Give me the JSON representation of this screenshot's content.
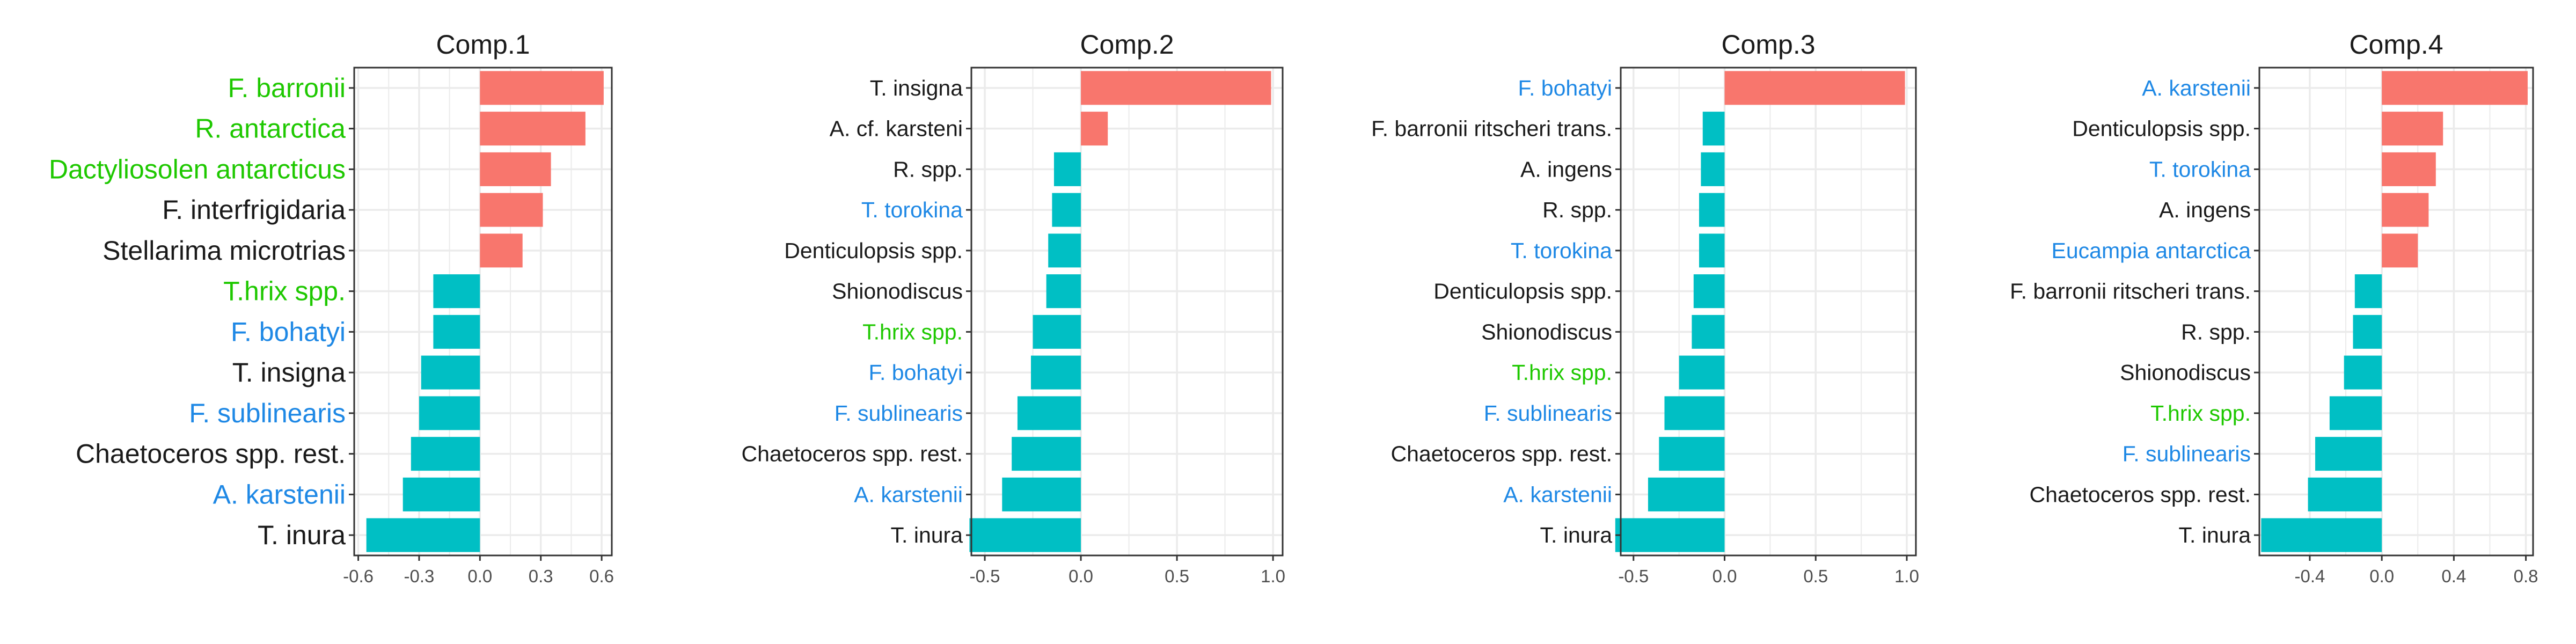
{
  "colors": {
    "positive": "#F8766D",
    "negative": "#00BFC4",
    "label_default": "#1a1a1a",
    "label_blue": "#1E88E5",
    "label_green": "#1EC800",
    "grid": "#EBEBEB",
    "panel_border": "#333333",
    "tick_label": "#4D4D4D"
  },
  "chart_data": [
    {
      "type": "bar",
      "orientation": "horizontal",
      "title": "Comp.1",
      "xlim": [
        -0.62,
        0.65
      ],
      "xticks": [
        -0.6,
        -0.3,
        0.0,
        0.3,
        0.6
      ],
      "xtick_labels": [
        "-0.6",
        "-0.3",
        "0.0",
        "0.3",
        "0.6"
      ],
      "grid": true,
      "categories": [
        "F. barronii",
        "R. antarctica",
        "Dactyliosolen antarcticus",
        "F. interfrigidaria",
        "Stellarima microtrias",
        "T.hrix spp.",
        "F. bohatyi",
        "T. insigna",
        "F. sublinearis",
        "Chaetoceros spp. rest.",
        "A. karstenii",
        "T. inura"
      ],
      "label_colors": [
        "green",
        "green",
        "green",
        "default",
        "default",
        "green",
        "blue",
        "default",
        "blue",
        "default",
        "blue",
        "default"
      ],
      "values": [
        0.61,
        0.52,
        0.35,
        0.31,
        0.21,
        -0.23,
        -0.23,
        -0.29,
        -0.3,
        -0.34,
        -0.38,
        -0.56
      ]
    },
    {
      "type": "bar",
      "orientation": "horizontal",
      "title": "Comp.2",
      "xlim": [
        -0.57,
        1.05
      ],
      "xticks": [
        -0.5,
        0.0,
        0.5,
        1.0
      ],
      "xtick_labels": [
        "-0.5",
        "0.0",
        "0.5",
        "1.0"
      ],
      "grid": true,
      "categories": [
        "T. insigna",
        "A. cf. karsteni",
        "R. spp.",
        "T. torokina",
        "Denticulopsis spp.",
        "Shionodiscus",
        "T.hrix spp.",
        "F. bohatyi",
        "F. sublinearis",
        "Chaetoceros spp. rest.",
        "A. karstenii",
        "T. inura"
      ],
      "label_colors": [
        "default",
        "default",
        "default",
        "blue",
        "default",
        "default",
        "green",
        "blue",
        "blue",
        "default",
        "blue",
        "default"
      ],
      "values": [
        0.99,
        0.14,
        -0.14,
        -0.15,
        -0.17,
        -0.18,
        -0.25,
        -0.26,
        -0.33,
        -0.36,
        -0.41,
        -0.58
      ]
    },
    {
      "type": "bar",
      "orientation": "horizontal",
      "title": "Comp.3",
      "xlim": [
        -0.57,
        1.05
      ],
      "xticks": [
        -0.5,
        0.0,
        0.5,
        1.0
      ],
      "xtick_labels": [
        "-0.5",
        "0.0",
        "0.5",
        "1.0"
      ],
      "grid": true,
      "categories": [
        "F. bohatyi",
        "F. barronii ritscheri trans.",
        "A. ingens",
        "R. spp.",
        "T. torokina",
        "Denticulopsis spp.",
        "Shionodiscus",
        "T.hrix spp.",
        "F. sublinearis",
        "Chaetoceros spp. rest.",
        "A. karstenii",
        "T. inura"
      ],
      "label_colors": [
        "blue",
        "default",
        "default",
        "default",
        "blue",
        "default",
        "default",
        "green",
        "blue",
        "default",
        "blue",
        "default"
      ],
      "values": [
        0.99,
        -0.12,
        -0.13,
        -0.14,
        -0.14,
        -0.17,
        -0.18,
        -0.25,
        -0.33,
        -0.36,
        -0.42,
        -0.6
      ]
    },
    {
      "type": "bar",
      "orientation": "horizontal",
      "title": "Comp.4",
      "xlim": [
        -0.68,
        0.84
      ],
      "xticks": [
        -0.4,
        0.0,
        0.4,
        0.8
      ],
      "xtick_labels": [
        "-0.4",
        "0.0",
        "0.4",
        "0.8"
      ],
      "grid": true,
      "categories": [
        "A. karstenii",
        "Denticulopsis spp.",
        "T. torokina",
        "A. ingens",
        "Eucampia antarctica",
        "F. barronii ritscheri trans.",
        "R. spp.",
        "Shionodiscus",
        "T.hrix spp.",
        "F. sublinearis",
        "Chaetoceros spp. rest.",
        "T. inura"
      ],
      "label_colors": [
        "blue",
        "default",
        "blue",
        "default",
        "blue",
        "default",
        "default",
        "default",
        "green",
        "blue",
        "default",
        "default"
      ],
      "values": [
        0.81,
        0.34,
        0.3,
        0.26,
        0.2,
        -0.15,
        -0.16,
        -0.21,
        -0.29,
        -0.37,
        -0.41,
        -0.67
      ]
    }
  ]
}
